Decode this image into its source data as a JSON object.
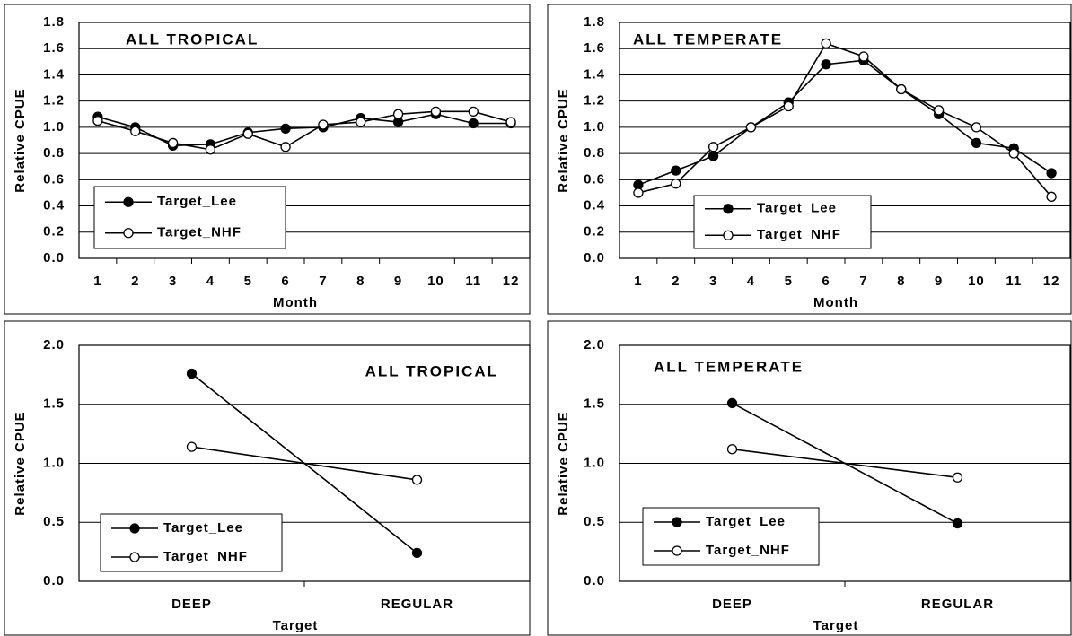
{
  "chart_data": [
    {
      "type": "line",
      "title": "ALL TROPICAL",
      "x_label": "Month",
      "y_label": "Relative CPUE",
      "categories": [
        "1",
        "2",
        "3",
        "4",
        "5",
        "6",
        "7",
        "8",
        "9",
        "10",
        "11",
        "12"
      ],
      "series": [
        {
          "name": "Target_Lee",
          "color": "#000000",
          "values": [
            1.08,
            1.0,
            0.86,
            0.87,
            0.96,
            0.99,
            1.0,
            1.07,
            1.04,
            1.1,
            1.03,
            1.03
          ]
        },
        {
          "name": "Target_NHF",
          "color": "#ffffff",
          "values": [
            1.05,
            0.97,
            0.88,
            0.83,
            0.95,
            0.85,
            1.02,
            1.04,
            1.1,
            1.12,
            1.12,
            1.04
          ]
        }
      ],
      "ylim": [
        0,
        1.8
      ],
      "yticks": [
        {
          "value": 0,
          "label": "0.0"
        },
        0.2,
        0.4,
        0.6,
        0.8,
        {
          "value": 1,
          "label": "1.0"
        },
        1.2,
        1.4,
        1.6,
        1.8
      ],
      "grid": true,
      "legend": "lower left"
    },
    {
      "type": "line",
      "title": "ALL TEMPERATE",
      "x_label": "Month",
      "y_label": "Relative CPUE",
      "categories": [
        "1",
        "2",
        "3",
        "4",
        "5",
        "6",
        "7",
        "8",
        "9",
        "10",
        "11",
        "12"
      ],
      "series": [
        {
          "name": "Target_Lee",
          "color": "#000000",
          "values": [
            0.56,
            0.67,
            0.78,
            1.0,
            1.19,
            1.48,
            1.51,
            1.29,
            1.1,
            0.88,
            0.84,
            0.65
          ]
        },
        {
          "name": "Target_NHF",
          "color": "#ffffff",
          "values": [
            0.5,
            0.57,
            0.85,
            1.0,
            1.16,
            1.64,
            1.54,
            1.29,
            1.13,
            1.0,
            0.8,
            0.47
          ]
        }
      ],
      "ylim": [
        0,
        1.8
      ],
      "yticks": [
        {
          "value": 0,
          "label": "0.0"
        },
        0.2,
        0.4,
        0.6,
        0.8,
        {
          "value": 1,
          "label": "1.0"
        },
        1.2,
        1.4,
        1.6,
        1.8
      ],
      "grid": true,
      "legend": "lower left"
    },
    {
      "type": "line",
      "title": "ALL TROPICAL",
      "x_label": "Target",
      "y_label": "Relative CPUE",
      "categories": [
        "DEEP",
        "REGULAR"
      ],
      "series": [
        {
          "name": "Target_Lee",
          "color": "#000000",
          "values": [
            1.76,
            0.24
          ]
        },
        {
          "name": "Target_NHF",
          "color": "#ffffff",
          "values": [
            1.14,
            0.86
          ]
        }
      ],
      "ylim": [
        0,
        2
      ],
      "yticks": [
        {
          "value": 0,
          "label": "0.0"
        },
        0.5,
        {
          "value": 1,
          "label": "1.0"
        },
        1.5,
        {
          "value": 2,
          "label": "2.0"
        }
      ],
      "grid": true,
      "legend": "lower left"
    },
    {
      "type": "line",
      "title": "ALL TEMPERATE",
      "x_label": "Target",
      "y_label": "Relative CPUE",
      "categories": [
        "DEEP",
        "REGULAR"
      ],
      "series": [
        {
          "name": "Target_Lee",
          "color": "#000000",
          "values": [
            1.51,
            0.49
          ]
        },
        {
          "name": "Target_NHF",
          "color": "#ffffff",
          "values": [
            1.12,
            0.88
          ]
        }
      ],
      "ylim": [
        0,
        2
      ],
      "yticks": [
        {
          "value": 0,
          "label": "0.0"
        },
        0.5,
        {
          "value": 1,
          "label": "1.0"
        },
        1.5,
        {
          "value": 2,
          "label": "2.0"
        }
      ],
      "grid": true,
      "legend": "lower left"
    }
  ]
}
